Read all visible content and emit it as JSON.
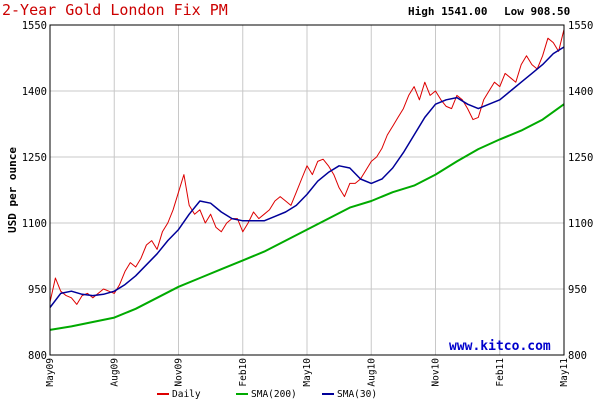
{
  "chart_data": {
    "type": "line",
    "title": "2-Year Gold London Fix PM",
    "high_label": "High 1541.00",
    "low_label": "Low 908.50",
    "ylabel": "USD per ounce",
    "watermark": "www.kitco.com",
    "ylim": [
      800,
      1550
    ],
    "yticks": [
      800,
      950,
      1100,
      1250,
      1400,
      1550
    ],
    "xlim": [
      0,
      24
    ],
    "xticks": [
      {
        "x": 0,
        "label": "May09"
      },
      {
        "x": 3,
        "label": "Aug09"
      },
      {
        "x": 6,
        "label": "Nov09"
      },
      {
        "x": 9,
        "label": "Feb10"
      },
      {
        "x": 12,
        "label": "May10"
      },
      {
        "x": 15,
        "label": "Aug10"
      },
      {
        "x": 18,
        "label": "Nov10"
      },
      {
        "x": 21,
        "label": "Feb11"
      },
      {
        "x": 24,
        "label": "May11"
      }
    ],
    "grid": true,
    "legend_position": "bottom",
    "colors": {
      "daily": "#dd0000",
      "sma200": "#00aa00",
      "sma30": "#000099",
      "title": "#cc0000",
      "watermark": "#0000cc"
    },
    "series": [
      {
        "name": "Daily",
        "key": "daily",
        "x": [
          0,
          0.25,
          0.5,
          0.75,
          1,
          1.25,
          1.5,
          1.75,
          2,
          2.25,
          2.5,
          2.75,
          3,
          3.25,
          3.5,
          3.75,
          4,
          4.25,
          4.5,
          4.75,
          5,
          5.25,
          5.5,
          5.75,
          6,
          6.25,
          6.5,
          6.75,
          7,
          7.25,
          7.5,
          7.75,
          8,
          8.25,
          8.5,
          8.75,
          9,
          9.25,
          9.5,
          9.75,
          10,
          10.25,
          10.5,
          10.75,
          11,
          11.25,
          11.5,
          11.75,
          12,
          12.25,
          12.5,
          12.75,
          13,
          13.25,
          13.5,
          13.75,
          14,
          14.25,
          14.5,
          14.75,
          15,
          15.25,
          15.5,
          15.75,
          16,
          16.25,
          16.5,
          16.75,
          17,
          17.25,
          17.5,
          17.75,
          18,
          18.25,
          18.5,
          18.75,
          19,
          19.25,
          19.5,
          19.75,
          20,
          20.25,
          20.5,
          20.75,
          21,
          21.25,
          21.5,
          21.75,
          22,
          22.25,
          22.5,
          22.75,
          23,
          23.25,
          23.5,
          23.75,
          24
        ],
        "values": [
          920,
          975,
          945,
          935,
          930,
          915,
          935,
          940,
          930,
          940,
          950,
          945,
          940,
          960,
          990,
          1010,
          1000,
          1020,
          1050,
          1060,
          1040,
          1080,
          1100,
          1130,
          1170,
          1210,
          1140,
          1120,
          1130,
          1100,
          1120,
          1090,
          1080,
          1100,
          1110,
          1110,
          1080,
          1100,
          1125,
          1110,
          1120,
          1130,
          1150,
          1160,
          1150,
          1140,
          1170,
          1200,
          1230,
          1210,
          1240,
          1245,
          1230,
          1210,
          1180,
          1160,
          1190,
          1190,
          1200,
          1220,
          1240,
          1250,
          1270,
          1300,
          1320,
          1340,
          1360,
          1390,
          1410,
          1380,
          1420,
          1390,
          1400,
          1380,
          1365,
          1360,
          1390,
          1380,
          1360,
          1335,
          1340,
          1380,
          1400,
          1420,
          1410,
          1440,
          1430,
          1420,
          1460,
          1480,
          1460,
          1450,
          1480,
          1520,
          1510,
          1490,
          1540
        ]
      },
      {
        "name": "SMA(200)",
        "key": "sma200",
        "x": [
          0,
          1,
          2,
          3,
          4,
          5,
          6,
          7,
          8,
          9,
          10,
          11,
          12,
          13,
          14,
          15,
          16,
          17,
          18,
          19,
          20,
          21,
          22,
          23,
          24
        ],
        "values": [
          857,
          865,
          875,
          885,
          905,
          930,
          955,
          975,
          995,
          1015,
          1035,
          1060,
          1085,
          1110,
          1135,
          1150,
          1170,
          1185,
          1210,
          1240,
          1268,
          1290,
          1310,
          1335,
          1370
        ]
      },
      {
        "name": "SMA(30)",
        "key": "sma30",
        "x": [
          0,
          0.5,
          1,
          1.5,
          2,
          2.5,
          3,
          3.5,
          4,
          4.5,
          5,
          5.5,
          6,
          6.5,
          7,
          7.5,
          8,
          8.5,
          9,
          9.5,
          10,
          10.5,
          11,
          11.5,
          12,
          12.5,
          13,
          13.5,
          14,
          14.5,
          15,
          15.5,
          16,
          16.5,
          17,
          17.5,
          18,
          18.5,
          19,
          19.5,
          20,
          20.5,
          21,
          21.5,
          22,
          22.5,
          23,
          23.5,
          24
        ],
        "values": [
          908,
          940,
          945,
          938,
          935,
          938,
          945,
          960,
          980,
          1005,
          1030,
          1060,
          1085,
          1120,
          1150,
          1145,
          1125,
          1110,
          1105,
          1105,
          1105,
          1115,
          1125,
          1140,
          1165,
          1195,
          1215,
          1230,
          1225,
          1200,
          1190,
          1200,
          1225,
          1260,
          1300,
          1340,
          1370,
          1380,
          1385,
          1370,
          1360,
          1370,
          1380,
          1400,
          1420,
          1440,
          1460,
          1485,
          1500
        ]
      }
    ]
  }
}
